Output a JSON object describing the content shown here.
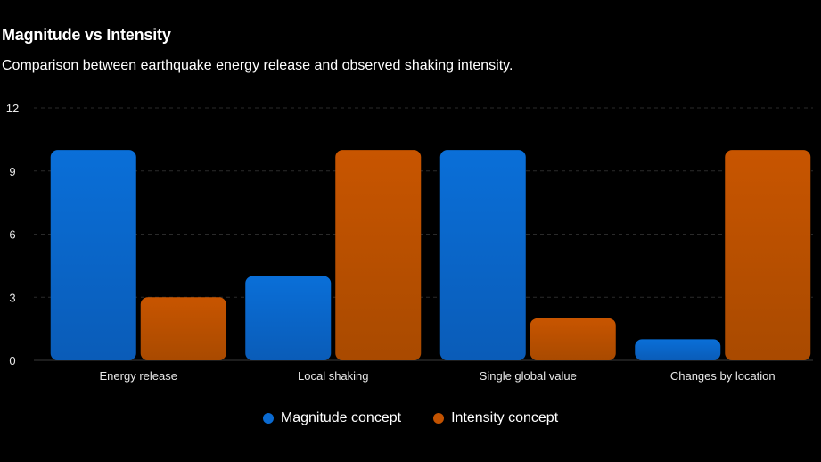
{
  "chart_data": {
    "type": "bar",
    "title": "Magnitude vs Intensity",
    "subtitle": "Comparison between earthquake energy release and observed shaking intensity.",
    "categories": [
      "Energy release",
      "Local shaking",
      "Single global value",
      "Changes by location"
    ],
    "series": [
      {
        "name": "Magnitude concept",
        "values": [
          10,
          4,
          10,
          1
        ],
        "color": "#0a6ad1"
      },
      {
        "name": "Intensity concept",
        "values": [
          3,
          10,
          2,
          10
        ],
        "color": "#c25200"
      }
    ],
    "ylim": [
      0,
      12
    ],
    "yticks": [
      0,
      3,
      6,
      9,
      12
    ],
    "grid": true,
    "legend": "bottom-center"
  }
}
